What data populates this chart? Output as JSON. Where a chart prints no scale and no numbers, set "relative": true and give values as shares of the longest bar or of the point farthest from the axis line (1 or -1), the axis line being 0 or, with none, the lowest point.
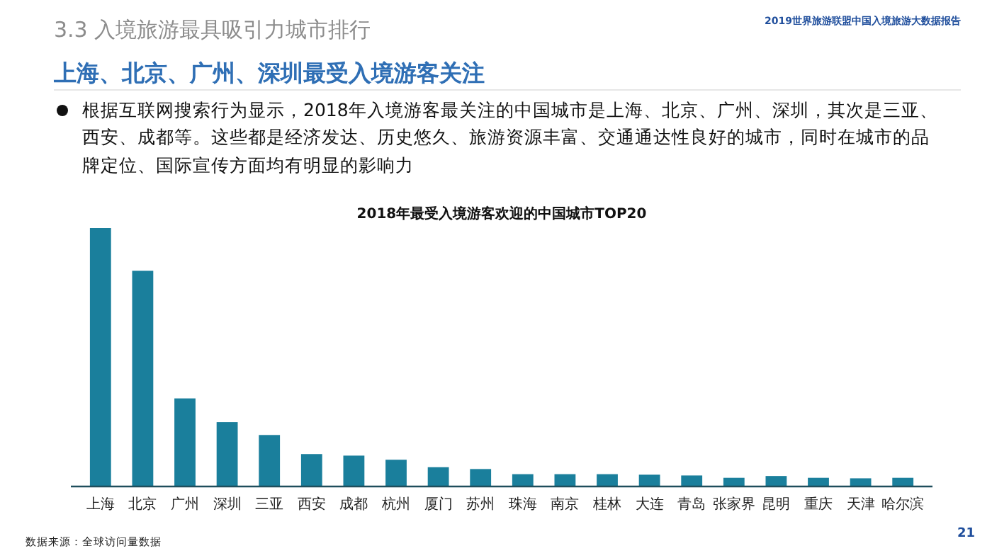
{
  "chart_data": {
    "type": "bar",
    "title": "2018年最受入境游客欢迎的中国城市TOP20",
    "relative": true,
    "color": "#1a7f9c",
    "categories": [
      "上海",
      "北京",
      "广州",
      "深圳",
      "三亚",
      "西安",
      "成都",
      "杭州",
      "厦门",
      "苏州",
      "珠海",
      "南京",
      "桂林",
      "大连",
      "青岛",
      "张家界",
      "昆明",
      "重庆",
      "天津",
      "哈尔滨"
    ],
    "values": [
      1,
      0.834,
      0.339,
      0.247,
      0.197,
      0.123,
      0.117,
      0.101,
      0.072,
      0.065,
      0.045,
      0.045,
      0.045,
      0.043,
      0.04,
      0.031,
      0.038,
      0.031,
      0.029,
      0.031
    ],
    "annotations": [
      "3.3 入境旅游最具吸引力城市排行",
      "2019世界旅游联盟中国入境旅游大数据报告",
      "上海、北京、广州、深圳最受入境游客关注",
      "根据互联网搜索行为显示，2018年入境游客最关注的中国城市是上海、北京、广州、深圳，其次是三亚、西安、成都等。这些都是经济发达、历史悠久、旅游资源丰富、交通通达性良好的城市，同时在城市的品牌定位、国际宣传方面均有明显的影响力",
      "数据来源：全球访问量数据",
      "21"
    ]
  }
}
